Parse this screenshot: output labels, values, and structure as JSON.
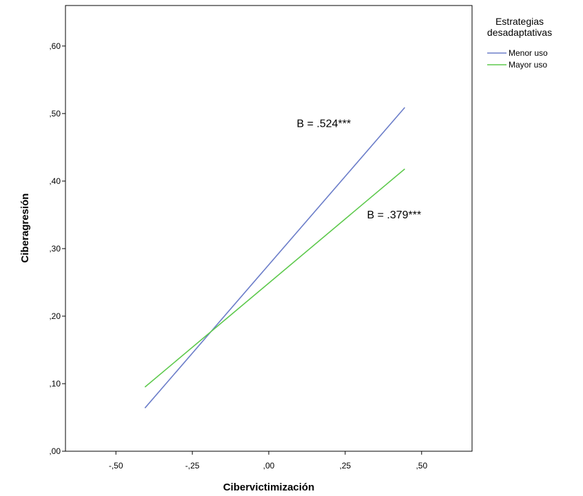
{
  "chart_data": {
    "type": "line",
    "xlabel": "Cibervictimización",
    "ylabel": "Ciberagresión",
    "xlim": [
      -0.665,
      0.665
    ],
    "ylim": [
      0.0,
      0.66
    ],
    "x_ticks": [
      {
        "value": -0.5,
        "label": "-,50"
      },
      {
        "value": -0.25,
        "label": "-,25"
      },
      {
        "value": 0.0,
        "label": ",00"
      },
      {
        "value": 0.25,
        "label": ",25"
      },
      {
        "value": 0.5,
        "label": ",50"
      }
    ],
    "y_ticks": [
      {
        "value": 0.0,
        "label": ",00"
      },
      {
        "value": 0.1,
        "label": ",10"
      },
      {
        "value": 0.2,
        "label": ",20"
      },
      {
        "value": 0.3,
        "label": ",30"
      },
      {
        "value": 0.4,
        "label": ",40"
      },
      {
        "value": 0.5,
        "label": ",50"
      },
      {
        "value": 0.6,
        "label": ",60"
      }
    ],
    "series": [
      {
        "name": "Menor uso",
        "color": "#6b7dc9",
        "x": [
          -0.405,
          0.445
        ],
        "y": [
          0.064,
          0.509
        ]
      },
      {
        "name": "Mayor uso",
        "color": "#5dc94c",
        "x": [
          -0.405,
          0.445
        ],
        "y": [
          0.095,
          0.418
        ]
      }
    ],
    "annotations": [
      {
        "text": "B = .524***",
        "x": 0.18,
        "y": 0.48
      },
      {
        "text": "B = .379***",
        "x": 0.41,
        "y": 0.345
      }
    ],
    "legend": {
      "title_lines": [
        "Estrategias",
        "desadaptativas"
      ],
      "position": "right"
    },
    "grid": false
  }
}
